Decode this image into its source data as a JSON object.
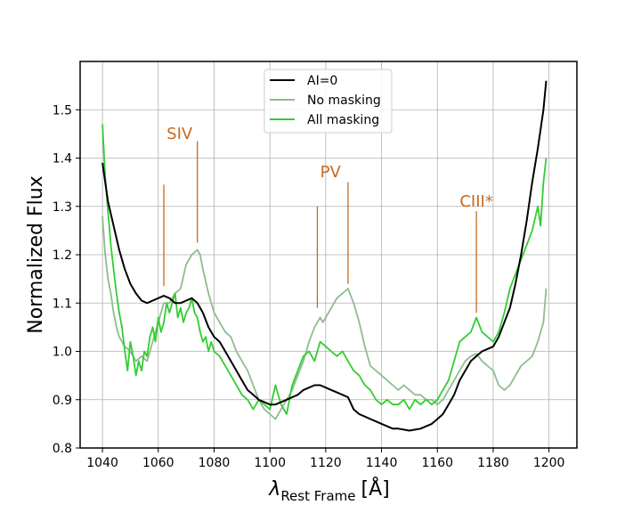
{
  "chart_data": {
    "type": "line",
    "title": "",
    "xlabel": "λ Rest Frame [Å]",
    "xlabel_main": "λ",
    "xlabel_sub": "Rest Frame",
    "xlabel_unit": "[Å]",
    "ylabel": "Normalized Flux",
    "xlim": [
      1032,
      1210
    ],
    "ylim": [
      0.8,
      1.6
    ],
    "xticks": [
      1040,
      1060,
      1080,
      1100,
      1120,
      1140,
      1160,
      1180,
      1200
    ],
    "xtick_labels": [
      "1040",
      "1060",
      "1080",
      "1100",
      "1120",
      "1140",
      "1160",
      "1180",
      "1200"
    ],
    "yticks": [
      0.8,
      0.9,
      1.0,
      1.1,
      1.2,
      1.3,
      1.4,
      1.5
    ],
    "ytick_labels": [
      "0.8",
      "0.9",
      "1.0",
      "1.1",
      "1.2",
      "1.3",
      "1.4",
      "1.5"
    ],
    "grid": true,
    "legend": "top-center",
    "series": [
      {
        "name": "AI=0",
        "color": "#000000",
        "x": [
          1040,
          1042,
          1044,
          1046,
          1048,
          1050,
          1052,
          1054,
          1056,
          1058,
          1060,
          1062,
          1064,
          1066,
          1068,
          1070,
          1072,
          1074,
          1076,
          1078,
          1080,
          1082,
          1084,
          1086,
          1088,
          1090,
          1092,
          1094,
          1096,
          1098,
          1100,
          1102,
          1104,
          1106,
          1108,
          1110,
          1112,
          1114,
          1116,
          1118,
          1120,
          1122,
          1124,
          1126,
          1128,
          1130,
          1132,
          1134,
          1136,
          1138,
          1140,
          1142,
          1144,
          1146,
          1148,
          1150,
          1152,
          1154,
          1156,
          1158,
          1160,
          1162,
          1164,
          1166,
          1168,
          1170,
          1172,
          1174,
          1176,
          1178,
          1180,
          1182,
          1184,
          1186,
          1188,
          1190,
          1192,
          1194,
          1196,
          1198,
          1199
        ],
        "y": [
          1.39,
          1.31,
          1.26,
          1.21,
          1.17,
          1.14,
          1.12,
          1.105,
          1.1,
          1.105,
          1.11,
          1.115,
          1.11,
          1.1,
          1.1,
          1.105,
          1.11,
          1.1,
          1.08,
          1.05,
          1.03,
          1.02,
          1.0,
          0.98,
          0.96,
          0.94,
          0.92,
          0.91,
          0.9,
          0.895,
          0.89,
          0.89,
          0.895,
          0.9,
          0.905,
          0.91,
          0.92,
          0.925,
          0.93,
          0.93,
          0.925,
          0.92,
          0.915,
          0.91,
          0.905,
          0.88,
          0.87,
          0.865,
          0.86,
          0.855,
          0.85,
          0.845,
          0.84,
          0.84,
          0.838,
          0.836,
          0.838,
          0.84,
          0.845,
          0.85,
          0.86,
          0.87,
          0.89,
          0.91,
          0.94,
          0.96,
          0.98,
          0.99,
          1.0,
          1.005,
          1.01,
          1.03,
          1.06,
          1.09,
          1.14,
          1.2,
          1.27,
          1.35,
          1.42,
          1.5,
          1.56
        ]
      },
      {
        "name": "No masking",
        "color": "#8fbc8f",
        "x": [
          1040,
          1041,
          1042,
          1043,
          1044,
          1045,
          1046,
          1047,
          1048,
          1050,
          1052,
          1054,
          1056,
          1058,
          1060,
          1062,
          1064,
          1066,
          1068,
          1070,
          1072,
          1074,
          1075,
          1076,
          1078,
          1080,
          1082,
          1084,
          1086,
          1088,
          1090,
          1092,
          1094,
          1096,
          1098,
          1100,
          1102,
          1104,
          1106,
          1108,
          1110,
          1112,
          1114,
          1116,
          1118,
          1119,
          1120,
          1122,
          1124,
          1126,
          1128,
          1130,
          1132,
          1134,
          1136,
          1138,
          1140,
          1142,
          1144,
          1146,
          1148,
          1150,
          1152,
          1154,
          1156,
          1158,
          1160,
          1162,
          1164,
          1166,
          1168,
          1170,
          1172,
          1174,
          1176,
          1178,
          1180,
          1182,
          1184,
          1186,
          1188,
          1190,
          1192,
          1194,
          1196,
          1198,
          1199
        ],
        "y": [
          1.28,
          1.2,
          1.15,
          1.12,
          1.08,
          1.05,
          1.03,
          1.02,
          1.01,
          1.0,
          0.98,
          0.99,
          0.98,
          1.02,
          1.06,
          1.1,
          1.1,
          1.12,
          1.13,
          1.18,
          1.2,
          1.21,
          1.2,
          1.17,
          1.12,
          1.08,
          1.06,
          1.04,
          1.03,
          1.0,
          0.98,
          0.96,
          0.93,
          0.9,
          0.88,
          0.87,
          0.86,
          0.88,
          0.9,
          0.92,
          0.95,
          0.98,
          1.02,
          1.05,
          1.07,
          1.06,
          1.07,
          1.09,
          1.11,
          1.12,
          1.13,
          1.1,
          1.06,
          1.01,
          0.97,
          0.96,
          0.95,
          0.94,
          0.93,
          0.92,
          0.93,
          0.92,
          0.91,
          0.91,
          0.9,
          0.9,
          0.89,
          0.9,
          0.92,
          0.94,
          0.96,
          0.98,
          0.99,
          0.995,
          0.98,
          0.97,
          0.96,
          0.93,
          0.92,
          0.93,
          0.95,
          0.97,
          0.98,
          0.99,
          1.02,
          1.06,
          1.13
        ]
      },
      {
        "name": "All masking",
        "color": "#33cc33",
        "x": [
          1040,
          1041,
          1042,
          1043,
          1044,
          1045,
          1046,
          1047,
          1048,
          1049,
          1050,
          1051,
          1052,
          1053,
          1054,
          1055,
          1056,
          1057,
          1058,
          1059,
          1060,
          1061,
          1062,
          1063,
          1064,
          1065,
          1066,
          1067,
          1068,
          1069,
          1070,
          1071,
          1072,
          1073,
          1074,
          1075,
          1076,
          1077,
          1078,
          1079,
          1080,
          1082,
          1084,
          1086,
          1088,
          1090,
          1092,
          1094,
          1096,
          1098,
          1100,
          1102,
          1104,
          1106,
          1108,
          1110,
          1112,
          1114,
          1116,
          1118,
          1120,
          1122,
          1124,
          1126,
          1128,
          1130,
          1132,
          1134,
          1136,
          1138,
          1140,
          1142,
          1144,
          1146,
          1148,
          1150,
          1152,
          1154,
          1156,
          1158,
          1160,
          1162,
          1164,
          1166,
          1168,
          1170,
          1172,
          1174,
          1176,
          1178,
          1180,
          1182,
          1184,
          1186,
          1188,
          1190,
          1192,
          1194,
          1196,
          1197,
          1198,
          1199
        ],
        "y": [
          1.47,
          1.36,
          1.29,
          1.22,
          1.17,
          1.12,
          1.08,
          1.05,
          1.0,
          0.96,
          1.02,
          0.99,
          0.95,
          0.98,
          0.96,
          1.0,
          0.99,
          1.03,
          1.05,
          1.02,
          1.07,
          1.04,
          1.06,
          1.1,
          1.08,
          1.1,
          1.12,
          1.07,
          1.09,
          1.06,
          1.08,
          1.09,
          1.11,
          1.08,
          1.07,
          1.04,
          1.02,
          1.03,
          1.0,
          1.02,
          1.0,
          0.99,
          0.97,
          0.95,
          0.93,
          0.91,
          0.9,
          0.88,
          0.9,
          0.89,
          0.88,
          0.93,
          0.89,
          0.87,
          0.93,
          0.96,
          0.99,
          1.0,
          0.98,
          1.02,
          1.01,
          1.0,
          0.99,
          1.0,
          0.98,
          0.96,
          0.95,
          0.93,
          0.92,
          0.9,
          0.89,
          0.9,
          0.89,
          0.89,
          0.9,
          0.88,
          0.9,
          0.89,
          0.9,
          0.89,
          0.9,
          0.92,
          0.94,
          0.98,
          1.02,
          1.03,
          1.04,
          1.07,
          1.04,
          1.03,
          1.02,
          1.04,
          1.08,
          1.13,
          1.16,
          1.19,
          1.22,
          1.25,
          1.3,
          1.26,
          1.35,
          1.4
        ]
      }
    ],
    "annotations": [
      {
        "label": "SIV",
        "color": "#c8691e",
        "lines": [
          {
            "x": 1062,
            "y0": 1.135,
            "y1": 1.345
          },
          {
            "x": 1074,
            "y0": 1.225,
            "y1": 1.435
          }
        ],
        "text_x": 1063,
        "text_y": 1.44
      },
      {
        "label": "PV",
        "color": "#c8691e",
        "lines": [
          {
            "x": 1117,
            "y0": 1.09,
            "y1": 1.3
          },
          {
            "x": 1128,
            "y0": 1.14,
            "y1": 1.35
          }
        ],
        "text_x": 1118,
        "text_y": 1.36
      },
      {
        "label": "CIII*",
        "color": "#c8691e",
        "lines": [
          {
            "x": 1174,
            "y0": 1.08,
            "y1": 1.29
          }
        ],
        "text_x": 1168,
        "text_y": 1.3
      }
    ]
  }
}
